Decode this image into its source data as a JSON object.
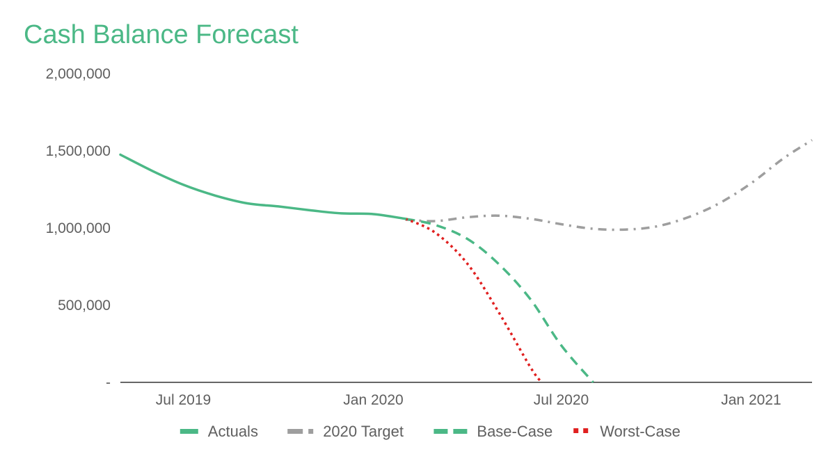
{
  "chart_data": {
    "type": "line",
    "title": "Cash Balance Forecast",
    "xlabel": "",
    "ylabel": "",
    "x_axis_type": "date",
    "xlim": [
      "2019-05-01",
      "2021-03-01"
    ],
    "ylim": [
      0,
      2000000
    ],
    "x_tick_labels": [
      {
        "date": "2019-07-01",
        "label": "Jul 2019"
      },
      {
        "date": "2020-01-01",
        "label": "Jan 2020"
      },
      {
        "date": "2020-07-01",
        "label": "Jul 2020"
      },
      {
        "date": "2021-01-01",
        "label": "Jan 2021"
      }
    ],
    "y_ticks": [
      {
        "value": 0,
        "label": "-"
      },
      {
        "value": 500000,
        "label": "500,000"
      },
      {
        "value": 1000000,
        "label": "1,000,000"
      },
      {
        "value": 1500000,
        "label": "1,500,000"
      },
      {
        "value": 2000000,
        "label": "2,000,000"
      }
    ],
    "grid": false,
    "legend_position": "bottom",
    "series": [
      {
        "name": "Actuals",
        "color": "#4BB886",
        "line_style": "solid",
        "points": [
          {
            "x": "2019-05-01",
            "y": 1475000
          },
          {
            "x": "2019-06-01",
            "y": 1370000
          },
          {
            "x": "2019-07-01",
            "y": 1280000
          },
          {
            "x": "2019-08-01",
            "y": 1210000
          },
          {
            "x": "2019-09-01",
            "y": 1160000
          },
          {
            "x": "2019-10-01",
            "y": 1140000
          },
          {
            "x": "2019-11-01",
            "y": 1115000
          },
          {
            "x": "2019-12-01",
            "y": 1095000
          },
          {
            "x": "2020-01-01",
            "y": 1090000
          },
          {
            "x": "2020-02-01",
            "y": 1060000
          }
        ]
      },
      {
        "name": "2020 Target",
        "color": "#9E9E9E",
        "line_style": "dash-dot",
        "points": [
          {
            "x": "2020-02-01",
            "y": 1055000
          },
          {
            "x": "2020-03-01",
            "y": 1045000
          },
          {
            "x": "2020-04-01",
            "y": 1070000
          },
          {
            "x": "2020-05-01",
            "y": 1080000
          },
          {
            "x": "2020-06-01",
            "y": 1060000
          },
          {
            "x": "2020-07-01",
            "y": 1025000
          },
          {
            "x": "2020-08-01",
            "y": 995000
          },
          {
            "x": "2020-09-01",
            "y": 990000
          },
          {
            "x": "2020-10-01",
            "y": 1010000
          },
          {
            "x": "2020-11-01",
            "y": 1070000
          },
          {
            "x": "2020-12-01",
            "y": 1160000
          },
          {
            "x": "2021-01-01",
            "y": 1290000
          },
          {
            "x": "2021-02-01",
            "y": 1450000
          },
          {
            "x": "2021-03-01",
            "y": 1570000
          }
        ]
      },
      {
        "name": "Base-Case",
        "color": "#4BB886",
        "line_style": "dashed",
        "points": [
          {
            "x": "2020-02-01",
            "y": 1060000
          },
          {
            "x": "2020-03-01",
            "y": 1020000
          },
          {
            "x": "2020-04-01",
            "y": 930000
          },
          {
            "x": "2020-05-01",
            "y": 770000
          },
          {
            "x": "2020-06-01",
            "y": 540000
          },
          {
            "x": "2020-07-01",
            "y": 240000
          },
          {
            "x": "2020-08-01",
            "y": 0
          }
        ]
      },
      {
        "name": "Worst-Case",
        "color": "#E02020",
        "line_style": "dotted",
        "points": [
          {
            "x": "2020-02-01",
            "y": 1060000
          },
          {
            "x": "2020-03-01",
            "y": 970000
          },
          {
            "x": "2020-04-01",
            "y": 770000
          },
          {
            "x": "2020-05-01",
            "y": 460000
          },
          {
            "x": "2020-06-01",
            "y": 100000
          },
          {
            "x": "2020-06-12",
            "y": 0
          }
        ]
      }
    ]
  }
}
